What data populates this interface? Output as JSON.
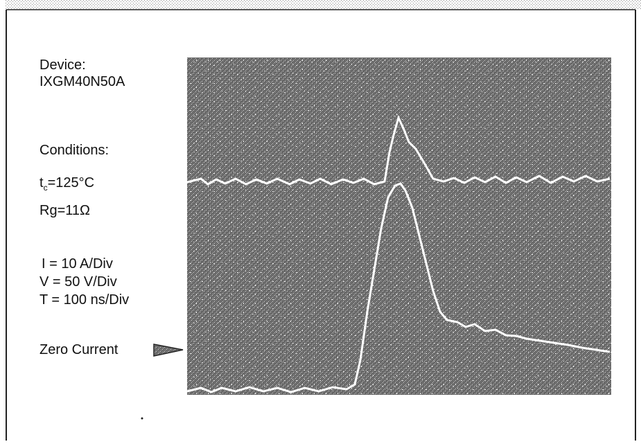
{
  "device": {
    "label": "Device:",
    "name": "IXGM40N50A"
  },
  "conditions": {
    "label": "Conditions:",
    "temperature": {
      "symbol": "t",
      "subscript": "c",
      "value": "=125°C"
    },
    "gate_resistance": "Rg=11Ω"
  },
  "scales": {
    "current": "I = 10 A/Div",
    "voltage": "V = 50 V/Div",
    "time": "T = 100 ns/Div"
  },
  "zero_marker": "Zero Current"
}
